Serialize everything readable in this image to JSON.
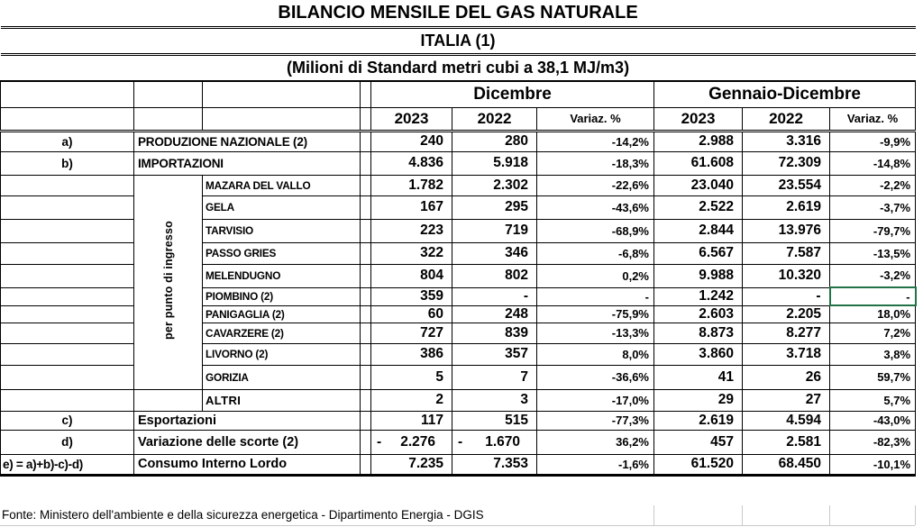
{
  "titles": {
    "line1": "BILANCIO MENSILE DEL GAS NATURALE",
    "line2": "ITALIA (1)",
    "line3": "(Milioni di Standard metri cubi a 38,1 MJ/m3)"
  },
  "header": {
    "period_month": "Dicembre",
    "period_year": "Gennaio-Dicembre",
    "year_current": "2023",
    "year_prev": "2022",
    "var_label": "Variaz. %"
  },
  "vertical_label": "per punto di ingresso",
  "selection_color": "#217346",
  "rows": [
    {
      "key": "produzione-nazionale",
      "kind": "main",
      "code": "a)",
      "label": "PRODUZIONE NAZIONALE (2)",
      "values": [
        "240",
        "280",
        "-14,2%",
        "2.988",
        "3.316",
        "-9,9%"
      ]
    },
    {
      "key": "importazioni",
      "kind": "main",
      "code": "b)",
      "label": "IMPORTAZIONI",
      "values": [
        "4.836",
        "5.918",
        "-18,3%",
        "61.608",
        "72.309",
        "-14,8%"
      ]
    },
    {
      "key": "mazara-del-vallo",
      "kind": "entry",
      "label": "MAZARA DEL VALLO",
      "values": [
        "1.782",
        "2.302",
        "-22,6%",
        "23.040",
        "23.554",
        "-2,2%"
      ]
    },
    {
      "key": "gela",
      "kind": "entry",
      "label": "GELA",
      "values": [
        "167",
        "295",
        "-43,6%",
        "2.522",
        "2.619",
        "-3,7%"
      ]
    },
    {
      "key": "tarvisio",
      "kind": "entry",
      "label": "TARVISIO",
      "values": [
        "223",
        "719",
        "-68,9%",
        "2.844",
        "13.976",
        "-79,7%"
      ]
    },
    {
      "key": "passo-gries",
      "kind": "entry",
      "label": "PASSO GRIES",
      "values": [
        "322",
        "346",
        "-6,8%",
        "6.567",
        "7.587",
        "-13,5%"
      ]
    },
    {
      "key": "melendugno",
      "kind": "entry",
      "label": "MELENDUGNO",
      "values": [
        "804",
        "802",
        "0,2%",
        "9.988",
        "10.320",
        "-3,2%"
      ]
    },
    {
      "key": "piombino",
      "kind": "entry",
      "label": "PIOMBINO (2)",
      "values": [
        "359",
        "-",
        "-",
        "1.242",
        "-",
        "-"
      ],
      "selected": 5
    },
    {
      "key": "panigaglia",
      "kind": "entry",
      "label": "PANIGAGLIA (2)",
      "values": [
        "60",
        "248",
        "-75,9%",
        "2.603",
        "2.205",
        "18,0%"
      ]
    },
    {
      "key": "cavarzere",
      "kind": "entry",
      "label": "CAVARZERE (2)",
      "values": [
        "727",
        "839",
        "-13,3%",
        "8.873",
        "8.277",
        "7,2%"
      ]
    },
    {
      "key": "livorno",
      "kind": "entry",
      "label": "LIVORNO (2)",
      "values": [
        "386",
        "357",
        "8,0%",
        "3.860",
        "3.718",
        "3,8%"
      ]
    },
    {
      "key": "gorizia",
      "kind": "entry",
      "label": "GORIZIA",
      "values": [
        "5",
        "7",
        "-36,6%",
        "41",
        "26",
        "59,7%"
      ]
    },
    {
      "key": "altri",
      "kind": "entry-solo",
      "label": "ALTRI",
      "emphasis": true,
      "values": [
        "2",
        "3",
        "-17,0%",
        "29",
        "27",
        "5,7%"
      ]
    },
    {
      "key": "esportazioni",
      "kind": "total",
      "code": "c)",
      "label": "Esportazioni",
      "values": [
        "117",
        "515",
        "-77,3%",
        "2.619",
        "4.594",
        "-43,0%"
      ]
    },
    {
      "key": "variazione-scorte",
      "kind": "total",
      "code": "d)",
      "label": "Variazione delle scorte (2)",
      "values": [
        "- 2.276",
        "- 1.670",
        "36,2%",
        "457",
        "2.581",
        "-82,3%"
      ]
    },
    {
      "key": "consumo-interno-lordo",
      "kind": "total",
      "code": "e) = a)+b)-c)-d)",
      "label": "Consumo Interno Lordo",
      "values": [
        "7.235",
        "7.353",
        "-1,6%",
        "61.520",
        "68.450",
        "-10,1%"
      ]
    }
  ],
  "footer": {
    "source": "Fonte: Ministero dell'ambiente e della sicurezza energetica - Dipartimento Energia - DGIS"
  }
}
